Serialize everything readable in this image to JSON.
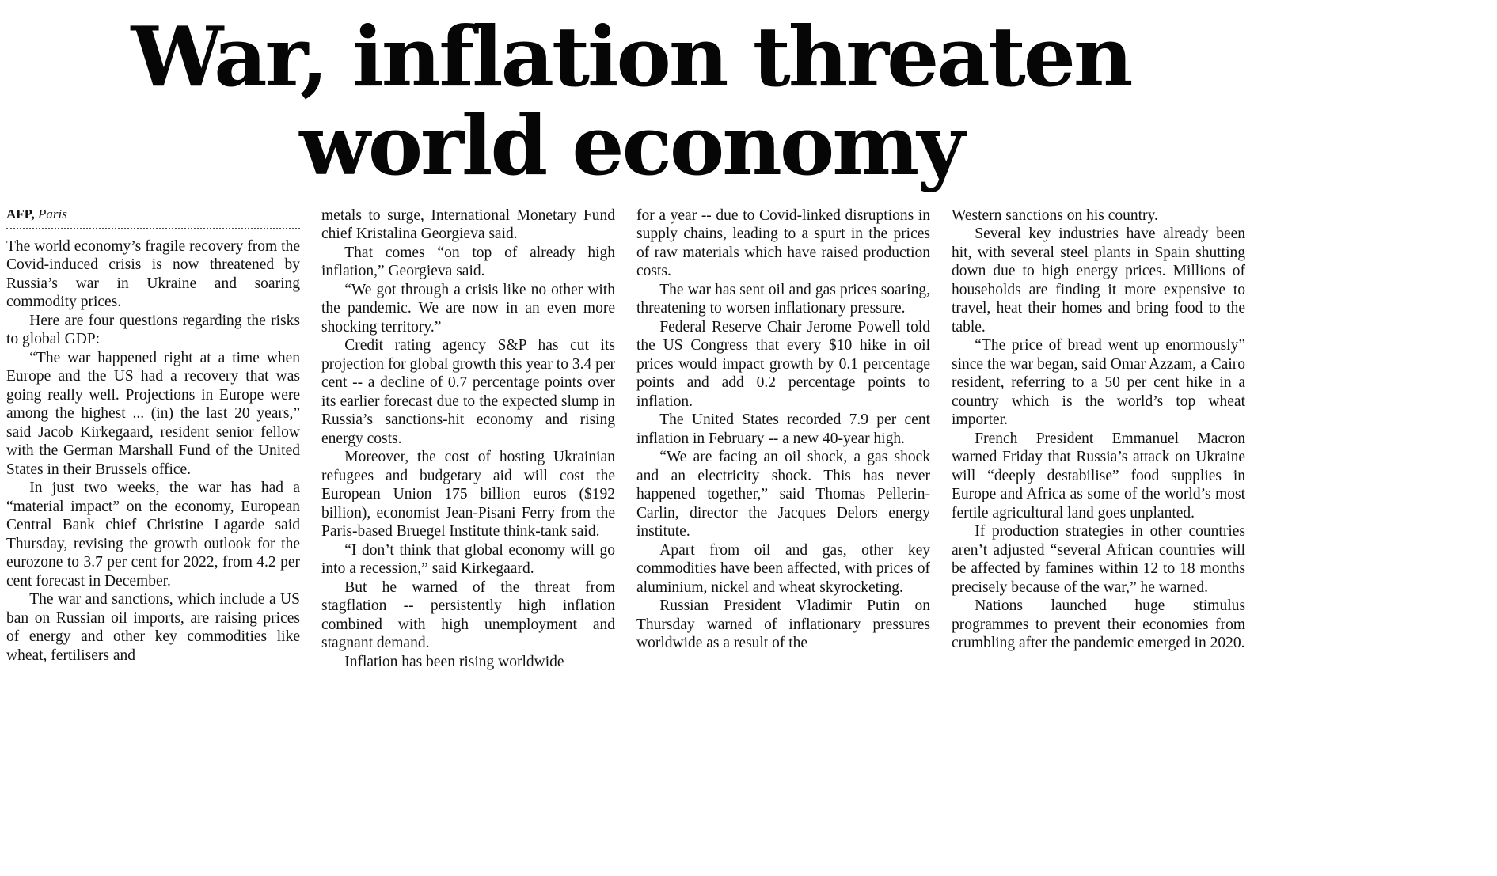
{
  "page": {
    "headline_lines": [
      "War, inflation threaten",
      "world economy"
    ],
    "byline": {
      "agency": "AFP,",
      "location": "Paris"
    },
    "columns": [
      {
        "paragraphs": [
          "The world economy’s fragile recovery from the Covid-induced crisis is now threatened by Russia’s war in Ukraine and soaring commodity prices.",
          "Here are four questions regarding the risks to global GDP:",
          "“The war happened right at a time when Europe and the US had a recovery that was going really well. Projections in Europe were among the highest ... (in) the last 20 years,” said Jacob Kirkegaard, resident senior fellow with the German Marshall Fund of the United States in their Brussels office.",
          "In just two weeks, the war has had a “material impact” on the economy, European Central Bank chief Christine Lagarde said Thursday, revising the growth outlook for the eurozone to 3.7 per cent for 2022, from 4.2 per cent forecast in December.",
          "The war and sanctions, which include a US ban on Russian oil imports, are raising prices of energy and other key commodities like wheat, fertilisers and"
        ]
      },
      {
        "paragraphs": [
          "metals to surge, International Monetary Fund chief Kristalina Georgieva said.",
          "That comes “on top of already high inflation,” Georgieva said.",
          "“We got through a crisis like no other with the pandemic. We are now in an even more shocking territory.”",
          "Credit rating agency S&P has cut its projection for global growth this year to 3.4 per cent -- a decline of 0.7 percentage points over its earlier forecast due to the expected slump in Russia’s sanctions-hit economy and rising energy costs.",
          "Moreover, the cost of hosting Ukrainian refugees and budgetary aid will cost the European Union 175 billion euros ($192 billion), economist Jean-Pisani Ferry from the Paris-based Bruegel Institute think-tank said.",
          "“I don’t think that global economy will go into a recession,” said Kirkegaard.",
          "But he warned of the threat from stagflation -- persistently high inflation combined with high unemployment and stagnant demand.",
          "Inflation has been rising worldwide"
        ]
      },
      {
        "paragraphs": [
          "for a year -- due to Covid-linked disruptions in supply chains, leading to a spurt in the prices of raw materials which have raised production costs.",
          "The war has sent oil and gas prices soaring, threatening to worsen inflationary pressure.",
          "Federal Reserve Chair Jerome Powell told the US Congress that every $10 hike in oil prices would impact growth by 0.1 percentage points and add 0.2 percentage points to inflation.",
          "The United States recorded 7.9 per cent inflation in February -- a new 40-year high.",
          "“We are facing an oil shock, a gas shock and an electricity shock. This has never happened together,” said Thomas Pellerin-Carlin, director the Jacques Delors energy institute.",
          "Apart from oil and gas, other key commodities have been affected, with prices of aluminium, nickel and wheat skyrocketing.",
          "Russian President Vladimir Putin on Thursday warned of inflationary pressures worldwide as a result of the"
        ]
      },
      {
        "paragraphs": [
          "Western sanctions on his country.",
          "Several key industries have already been hit, with several steel plants in Spain shutting down due to high energy prices. Millions of households are finding it more expensive to travel, heat their homes and bring food to the table.",
          "“The price of bread went up enormously” since the war began, said Omar Azzam, a Cairo resident, referring to a 50 per cent hike in a country which is the world’s top wheat importer.",
          "French President Emmanuel Macron warned Friday that Russia’s attack on Ukraine will “deeply destabilise” food supplies in Europe and Africa as some of the world’s most fertile agricultural land goes unplanted.",
          "If production strategies in other countries aren’t adjusted “several African countries will be affected by famines within 12 to 18 months precisely because of the war,” he warned.",
          "Nations launched huge stimulus programmes to prevent their economies from crumbling after the pandemic emerged in 2020."
        ]
      }
    ]
  }
}
